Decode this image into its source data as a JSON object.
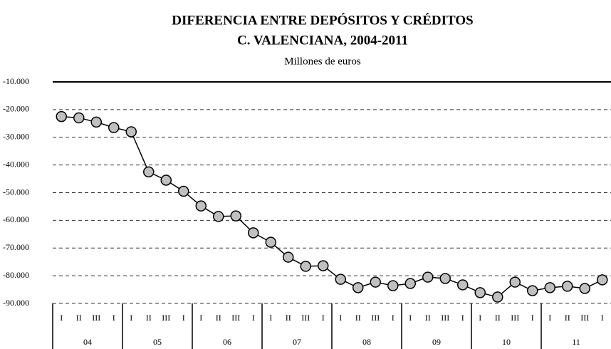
{
  "chart_data": {
    "type": "line",
    "title": "DIFERENCIA ENTRE DEPÓSITOS Y CRÉDITOS",
    "subtitle": "C. VALENCIANA, 2004-2011",
    "y_label": "Millones de euros",
    "categories": [
      "I",
      "II",
      "III",
      "I",
      "I",
      "II",
      "III",
      "I",
      "I",
      "II",
      "III",
      "I",
      "I",
      "II",
      "III",
      "I",
      "I",
      "II",
      "III",
      "I",
      "I",
      "II",
      "III",
      "I",
      "I",
      "II",
      "III",
      "I",
      "I",
      "II",
      "III",
      "I"
    ],
    "groups": [
      "04",
      "05",
      "06",
      "07",
      "08",
      "09",
      "10",
      "11"
    ],
    "series": [
      {
        "name": "Diferencia",
        "color": "#c0c0c0",
        "values": [
          -22500,
          -23000,
          -24500,
          -26500,
          -28000,
          -42500,
          -45500,
          -49500,
          -54800,
          -58600,
          -58400,
          -64500,
          -67900,
          -73300,
          -76600,
          -76400,
          -81300,
          -84300,
          -82300,
          -83600,
          -82800,
          -80500,
          -81000,
          -83300,
          -86100,
          -87700,
          -82300,
          -85400,
          -84300,
          -83800,
          -84600,
          -81500
        ]
      }
    ],
    "ylim": [
      -90000,
      -10000
    ],
    "yticks": [
      {
        "value": -90000,
        "label": "-90.000"
      },
      {
        "value": -80000,
        "label": "-80.000"
      },
      {
        "value": -70000,
        "label": "-70.000"
      },
      {
        "value": -60000,
        "label": "-60.000"
      },
      {
        "value": -50000,
        "label": "-50.000"
      },
      {
        "value": -40000,
        "label": "-40.000"
      },
      {
        "value": -30000,
        "label": "-30.000"
      },
      {
        "value": -20000,
        "label": "-20.000"
      },
      {
        "value": -10000,
        "label": "-10.000"
      }
    ],
    "grid": true
  }
}
